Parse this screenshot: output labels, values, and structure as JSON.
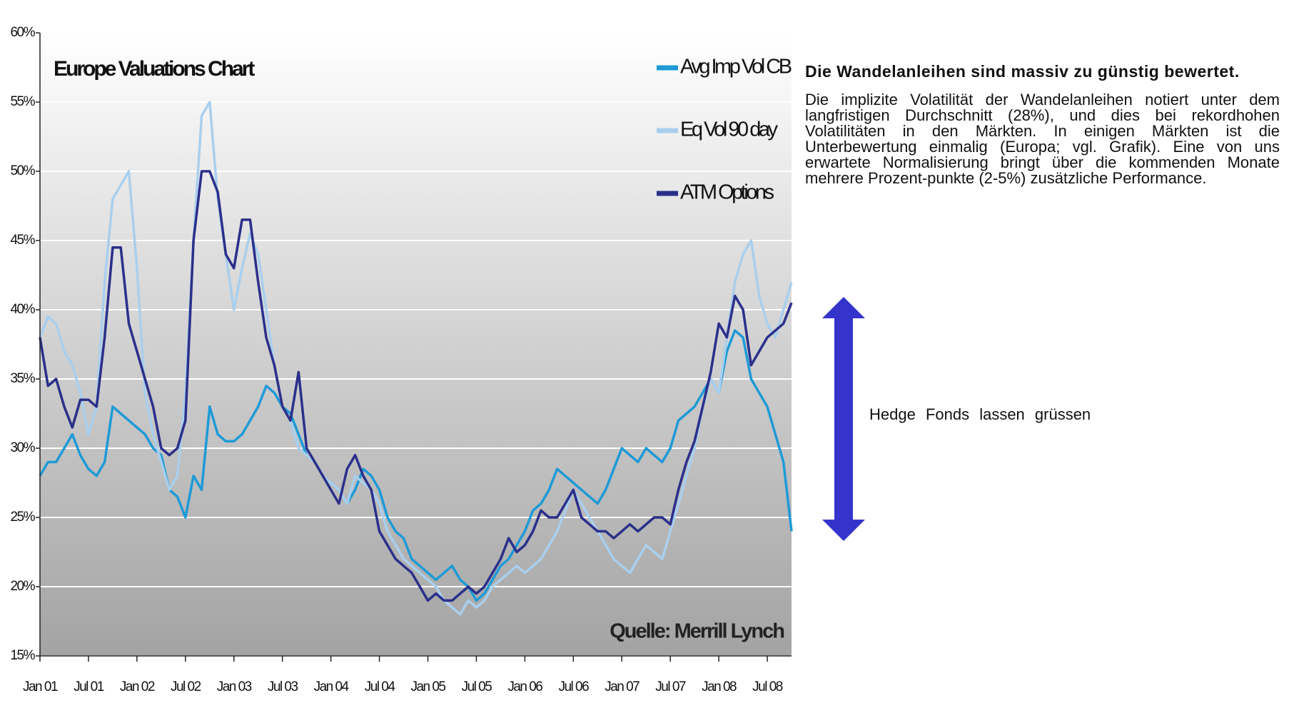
{
  "chart_data": {
    "type": "line",
    "title": "Europe Valuations Chart",
    "source": "Quelle: Merrill Lynch",
    "categories": [
      "Jan 01",
      null,
      null,
      null,
      null,
      null,
      "Jul 01",
      null,
      null,
      null,
      null,
      null,
      "Jan 02",
      null,
      null,
      null,
      null,
      null,
      "Jul 02",
      null,
      null,
      null,
      null,
      null,
      "Jan 03",
      null,
      null,
      null,
      null,
      null,
      "Jul 03",
      null,
      null,
      null,
      null,
      null,
      "Jan 04",
      null,
      null,
      null,
      null,
      null,
      "Jul 04",
      null,
      null,
      null,
      null,
      null,
      "Jan 05",
      null,
      null,
      null,
      null,
      null,
      "Jul 05",
      null,
      null,
      null,
      null,
      null,
      "Jan 06",
      null,
      null,
      null,
      null,
      null,
      "Jul 06",
      null,
      null,
      null,
      null,
      null,
      "Jan 07",
      null,
      null,
      null,
      null,
      null,
      "Jul 07",
      null,
      null,
      null,
      null,
      null,
      "Jan 08",
      null,
      null,
      null,
      null,
      null,
      "Jul 08",
      null,
      null,
      null
    ],
    "series": [
      {
        "name": "Avg Imp Vol CB",
        "color": "#1e9ad6",
        "values": [
          28,
          29,
          29,
          30,
          31,
          29.5,
          28.5,
          28,
          29,
          33,
          32.5,
          32,
          31.5,
          31,
          30,
          29.5,
          27,
          26.5,
          25,
          28,
          27,
          33,
          31,
          30.5,
          30.5,
          31,
          32,
          33,
          34.5,
          34,
          33,
          32.5,
          31,
          29.5,
          29,
          28,
          27.5,
          27,
          26,
          27,
          28.5,
          28,
          27,
          25,
          24,
          23.5,
          22,
          21.5,
          21,
          20.5,
          21,
          21.5,
          20.5,
          20,
          19,
          19.5,
          20.5,
          21.5,
          22,
          23,
          24,
          25.5,
          26,
          27,
          28.5,
          28,
          27.5,
          27,
          26.5,
          26,
          27,
          28.5,
          30,
          29.5,
          29,
          30,
          29.5,
          29,
          30,
          32,
          32.5,
          33,
          34,
          35,
          34,
          37,
          38.5,
          38,
          35,
          34,
          33,
          31,
          29,
          24
        ]
      },
      {
        "name": "Eq Vol 90 day",
        "color": "#a9cfee",
        "values": [
          38,
          39.5,
          39,
          37,
          36,
          34,
          31,
          33,
          42,
          48,
          49,
          50,
          43,
          34,
          31,
          29,
          27,
          28,
          34,
          45,
          54,
          55,
          48,
          44,
          40,
          43,
          45.5,
          44,
          40,
          36,
          33,
          32,
          30,
          29.5,
          29,
          28,
          27.5,
          27,
          26,
          28,
          27.5,
          27,
          26,
          24,
          23,
          22,
          21.5,
          21,
          20.5,
          20,
          19,
          18.5,
          18,
          19,
          18.5,
          19,
          20,
          20.5,
          21,
          21.5,
          21,
          21.5,
          22,
          23,
          24,
          25.5,
          27,
          26,
          25,
          24,
          23,
          22,
          21.5,
          21,
          22,
          23,
          22.5,
          22,
          24,
          26,
          28,
          30,
          33,
          35,
          34,
          38,
          42,
          44,
          45,
          41,
          39,
          38,
          40,
          42
        ]
      },
      {
        "name": "ATM Options",
        "color": "#2b2f8a",
        "values": [
          38,
          34.5,
          35,
          33,
          31.5,
          33.5,
          33.5,
          33,
          38,
          44.5,
          44.5,
          39,
          37,
          35,
          33,
          30,
          29.5,
          30,
          32,
          45,
          50,
          50,
          48.5,
          44,
          43,
          46.5,
          46.5,
          42,
          38,
          36,
          33,
          32,
          35.5,
          30,
          29,
          28,
          27,
          26,
          28.5,
          29.5,
          28,
          27,
          24,
          23,
          22,
          21.5,
          21,
          20,
          19,
          19.5,
          19,
          19,
          19.5,
          20,
          19.5,
          20,
          21,
          22,
          23.5,
          22.5,
          23,
          24,
          25.5,
          25,
          25,
          26,
          27,
          25,
          24.5,
          24,
          24,
          23.5,
          24,
          24.5,
          24,
          24.5,
          25,
          25,
          24.5,
          27,
          29,
          30.5,
          33,
          35.5,
          39,
          38,
          41,
          40,
          36,
          37,
          38,
          38.5,
          39,
          40.5
        ]
      }
    ],
    "ylim": [
      15,
      60
    ],
    "yticks": [
      {
        "value": 15,
        "label": "15%"
      },
      {
        "value": 20,
        "label": "20%"
      },
      {
        "value": 25,
        "label": "25%"
      },
      {
        "value": 30,
        "label": "30%"
      },
      {
        "value": 35,
        "label": "35%"
      },
      {
        "value": 40,
        "label": "40%"
      },
      {
        "value": 45,
        "label": "45%"
      },
      {
        "value": 50,
        "label": "50%"
      },
      {
        "value": 55,
        "label": "55%"
      },
      {
        "value": 60,
        "label": "60%"
      }
    ],
    "grid": true
  },
  "side_text": {
    "heading": "Die Wandelanleihen sind massiv zu günstig bewertet.",
    "body": "Die implizite Volatilität der Wandelanleihen notiert unter dem langfristigen Durchschnitt (28%), und dies bei rekordhohen Volatilitäten in den Märkten. In einigen Märkten ist die Unterbewertung einmalig (Europa; vgl. Grafik). Eine von uns erwartete Normalisierung bringt über die kommenden Monate mehrere Prozent-punkte (2-5%) zusätzliche Performance.",
    "note": "Hedge Fonds lassen grüssen"
  }
}
